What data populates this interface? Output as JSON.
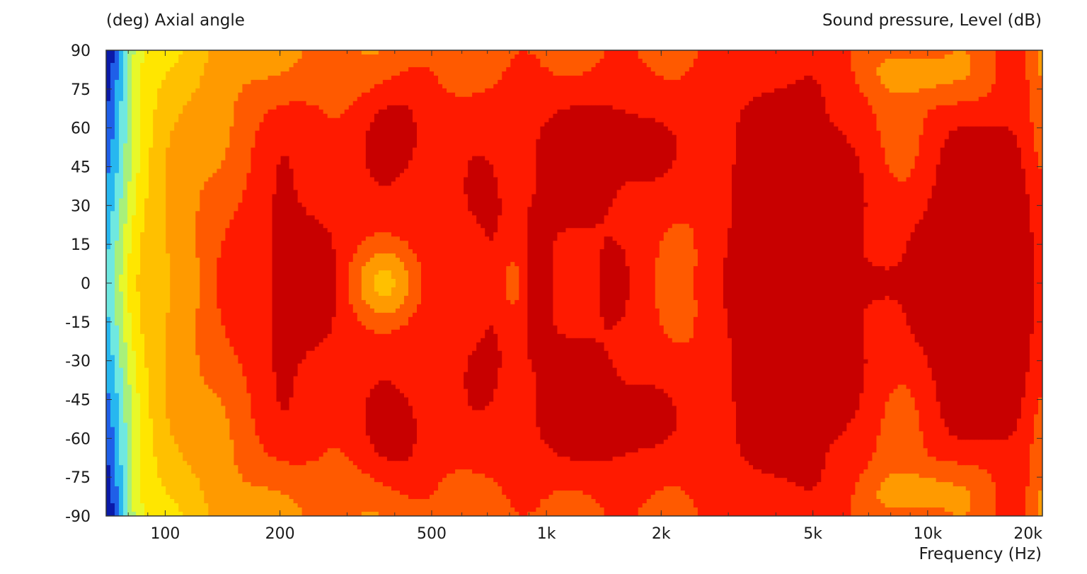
{
  "chart_data": {
    "type": "heatmap",
    "title": "",
    "ylabel": "(deg)  Axial angle",
    "xlabel": "Frequency  (Hz)",
    "zlabel": "Sound pressure, Level  (dB)",
    "x_scale": "log",
    "xlim": [
      70,
      20000
    ],
    "ylim": [
      -90,
      90
    ],
    "x_ticks": [
      {
        "value": 100,
        "label": "100"
      },
      {
        "value": 200,
        "label": "200"
      },
      {
        "value": 500,
        "label": "500"
      },
      {
        "value": 1000,
        "label": "1k"
      },
      {
        "value": 2000,
        "label": "2k"
      },
      {
        "value": 5000,
        "label": "5k"
      },
      {
        "value": 10000,
        "label": "10k"
      },
      {
        "value": 20000,
        "label": "20k"
      }
    ],
    "y_ticks": [
      90,
      75,
      60,
      45,
      30,
      15,
      0,
      -15,
      -30,
      -45,
      -60,
      -75,
      -90
    ],
    "y_tick_labels": [
      "90",
      "75",
      "60",
      "45",
      "30",
      "15",
      "0",
      "-15",
      "-30",
      "-45",
      "-60",
      "-75",
      "-90"
    ],
    "colormap": [
      "#0a1aa8",
      "#1f5fe8",
      "#27b7f0",
      "#6fe8e0",
      "#a8f07a",
      "#e8f82a",
      "#ffe600",
      "#ffc000",
      "#ff9a00",
      "#ff5a00",
      "#ff1a00",
      "#c80000"
    ],
    "colormap_direction": "low level to high level",
    "grid": false
  }
}
